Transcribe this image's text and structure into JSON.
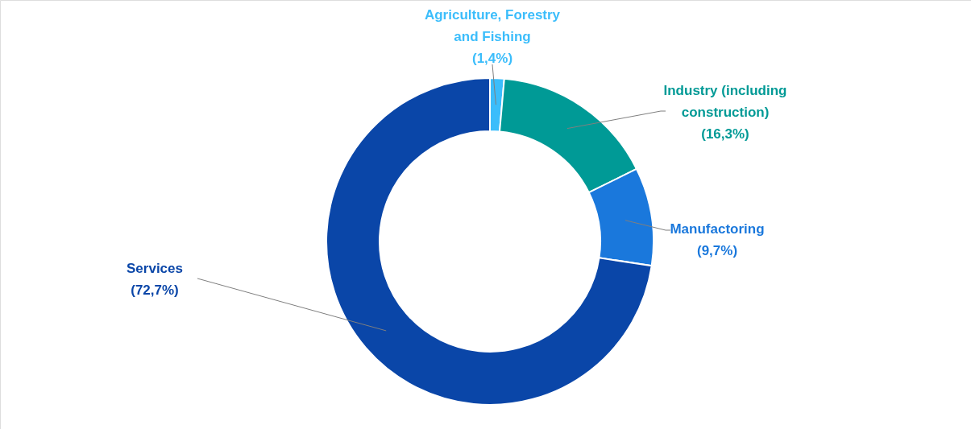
{
  "chart_data": {
    "type": "donut",
    "categories": [
      "Agriculture, Forestry and Fishing",
      "Industry (including construction)",
      "Manufactoring",
      "Services"
    ],
    "values": [
      1.4,
      16.3,
      9.7,
      72.7
    ],
    "colors": [
      "#3bbdfb",
      "#009a96",
      "#1a78dc",
      "#0a46a8"
    ],
    "value_labels": [
      "(1,4%)",
      "(16,3%)",
      "(9,7%)",
      "(72,7%)"
    ]
  }
}
